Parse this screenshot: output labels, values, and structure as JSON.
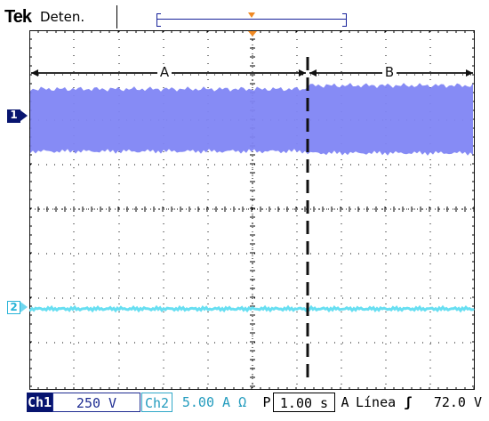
{
  "header": {
    "brand": "Tek",
    "status": "Deten."
  },
  "markers": {
    "ch1": "1",
    "ch2": "2"
  },
  "annotations": {
    "region_a": "A",
    "region_b": "B"
  },
  "footer": {
    "ch1_label": "Ch1",
    "ch1_scale": "250 V",
    "ch2_label": "Ch2",
    "ch2_scale": "5.00 A Ω",
    "timebase_label": "P",
    "timebase_value": "1.00 s",
    "trigger_label": "A",
    "trigger_source": "Línea",
    "trigger_slope": "ʃ",
    "trigger_level": "72.0 V"
  },
  "colors": {
    "screen_border": "#111111",
    "grid": "#000000",
    "ch1_trace": "#7f85f4",
    "ch1_marker": "#07146f",
    "ch2_trace": "#67dff2",
    "trigger_marker": "#f08a24"
  }
}
